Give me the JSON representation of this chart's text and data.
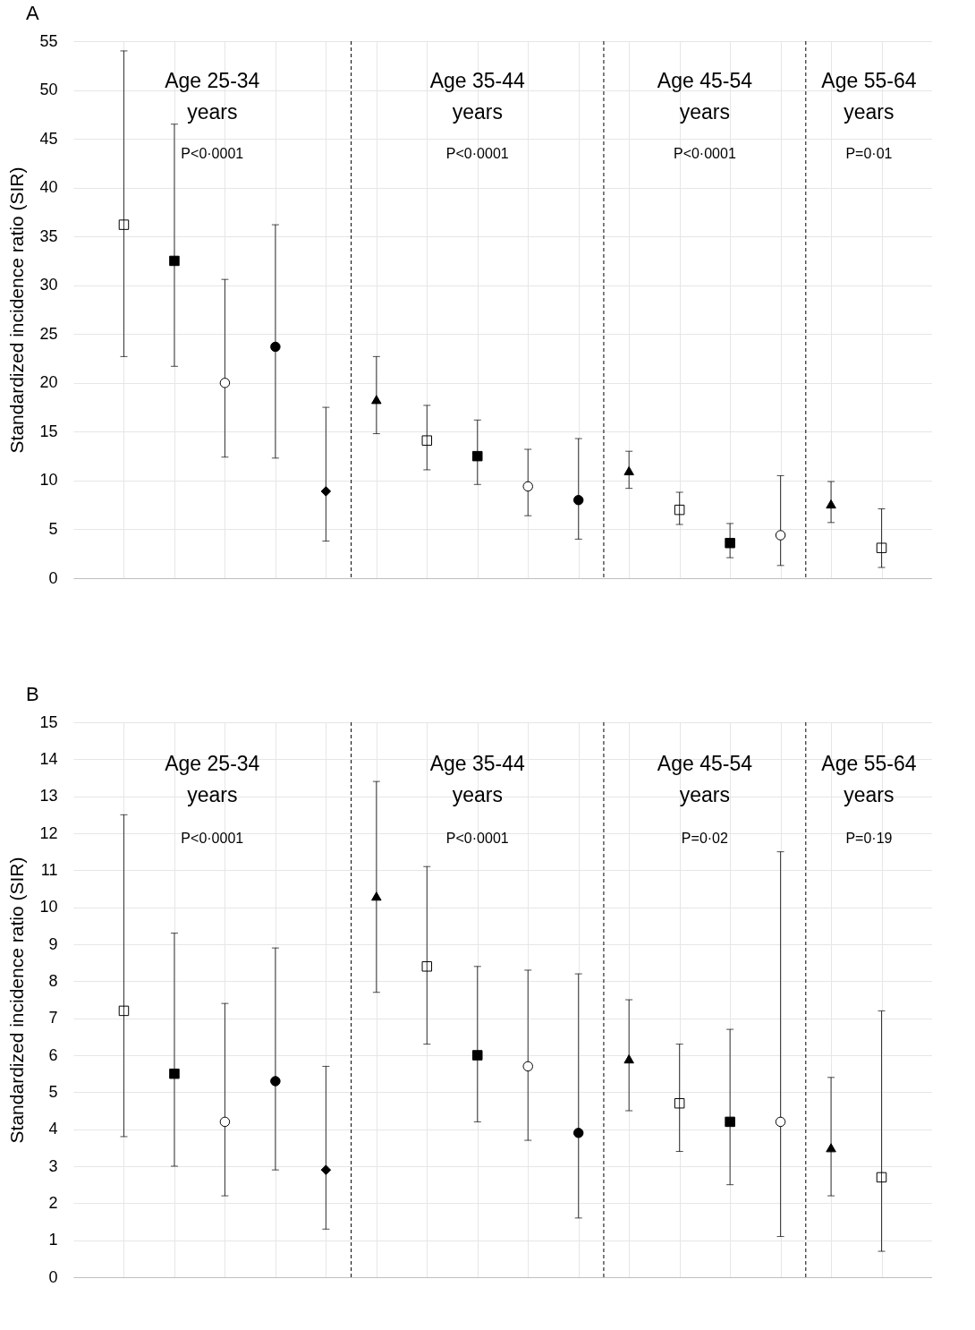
{
  "chart_data": [
    {
      "type": "scatter",
      "title": "A",
      "ylabel": "Standardized incidence ratio (SIR)",
      "categories": [
        null,
        null,
        null,
        null,
        null,
        null,
        null,
        null,
        null,
        null,
        null,
        null,
        null,
        null,
        null,
        null
      ],
      "ylim": [
        0,
        55
      ],
      "yticks": [
        0,
        5,
        10,
        15,
        20,
        25,
        30,
        35,
        40,
        45,
        50,
        55
      ],
      "tick_labels": "y",
      "grid": true,
      "series": [
        {
          "marker": "square",
          "color": "#ffffff",
          "values": [
            36.2,
            null,
            null,
            null,
            null,
            null,
            14.1,
            null,
            null,
            null,
            null,
            7.0,
            null,
            null,
            null,
            3.1
          ],
          "errors": [
            [
              22.7,
              54.0
            ],
            null,
            null,
            null,
            null,
            null,
            [
              11.1,
              17.7
            ],
            null,
            null,
            null,
            null,
            [
              5.5,
              8.8
            ],
            null,
            null,
            null,
            [
              1.1,
              7.1
            ]
          ]
        },
        {
          "marker": "square",
          "color": "#000000",
          "values": [
            null,
            32.5,
            null,
            null,
            null,
            null,
            null,
            12.5,
            null,
            null,
            null,
            null,
            3.6,
            null,
            null,
            null
          ],
          "errors": [
            null,
            [
              21.7,
              46.5
            ],
            null,
            null,
            null,
            null,
            null,
            [
              9.6,
              16.2
            ],
            null,
            null,
            null,
            null,
            [
              2.1,
              5.6
            ],
            null,
            null,
            null
          ]
        },
        {
          "marker": "circle",
          "color": "#ffffff",
          "values": [
            null,
            null,
            20.0,
            null,
            null,
            null,
            null,
            null,
            9.4,
            null,
            null,
            null,
            null,
            4.4,
            null,
            null
          ],
          "errors": [
            null,
            null,
            [
              12.4,
              30.6
            ],
            null,
            null,
            null,
            null,
            null,
            [
              6.4,
              13.2
            ],
            null,
            null,
            null,
            null,
            [
              1.3,
              10.5
            ],
            null,
            null
          ]
        },
        {
          "marker": "circle",
          "color": "#000000",
          "values": [
            null,
            null,
            null,
            23.7,
            null,
            null,
            null,
            null,
            null,
            8.0,
            null,
            null,
            null,
            null,
            null,
            null
          ],
          "errors": [
            null,
            null,
            null,
            [
              12.3,
              36.2
            ],
            null,
            null,
            null,
            null,
            null,
            [
              4.0,
              14.3
            ],
            null,
            null,
            null,
            null,
            null,
            null
          ]
        },
        {
          "marker": "diamond",
          "color": "#000000",
          "values": [
            null,
            null,
            null,
            null,
            8.9,
            null,
            null,
            null,
            null,
            null,
            null,
            null,
            null,
            null,
            null,
            null
          ],
          "errors": [
            null,
            null,
            null,
            null,
            [
              3.8,
              17.5
            ],
            null,
            null,
            null,
            null,
            null,
            null,
            null,
            null,
            null,
            null,
            null
          ]
        },
        {
          "marker": "triangle",
          "color": "#000000",
          "values": [
            null,
            null,
            null,
            null,
            null,
            18.3,
            null,
            null,
            null,
            null,
            11.0,
            null,
            null,
            null,
            7.6,
            null
          ],
          "errors": [
            null,
            null,
            null,
            null,
            null,
            [
              14.8,
              22.7
            ],
            null,
            null,
            null,
            null,
            [
              9.2,
              13.0
            ],
            null,
            null,
            null,
            [
              5.7,
              9.9
            ],
            null
          ]
        }
      ],
      "annotations": [
        "Age 25-34 years",
        "Age 35-44 years",
        "Age 45-54 years",
        "Age 55-64 years",
        "P<0·0001",
        "P<0·0001",
        "P<0·0001",
        "P=0·01"
      ]
    },
    {
      "type": "scatter",
      "title": "B",
      "ylabel": "Standardized incidence ratio (SIR)",
      "categories": [
        null,
        null,
        null,
        null,
        null,
        null,
        null,
        null,
        null,
        null,
        null,
        null,
        null,
        null,
        null,
        null
      ],
      "ylim": [
        0,
        15
      ],
      "yticks": [
        0,
        1,
        2,
        3,
        4,
        5,
        6,
        7,
        8,
        9,
        10,
        11,
        12,
        13,
        14,
        15
      ],
      "tick_labels": "y",
      "grid": true,
      "series": [
        {
          "marker": "square",
          "color": "#ffffff",
          "values": [
            7.2,
            null,
            null,
            null,
            null,
            null,
            8.4,
            null,
            null,
            null,
            null,
            4.7,
            null,
            null,
            null,
            2.7
          ],
          "errors": [
            [
              3.8,
              12.5
            ],
            null,
            null,
            null,
            null,
            null,
            [
              6.3,
              11.1
            ],
            null,
            null,
            null,
            null,
            [
              3.4,
              6.3
            ],
            null,
            null,
            null,
            [
              0.7,
              7.2
            ]
          ]
        },
        {
          "marker": "square",
          "color": "#000000",
          "values": [
            null,
            5.5,
            null,
            null,
            null,
            null,
            null,
            6.0,
            null,
            null,
            null,
            null,
            4.2,
            null,
            null,
            null
          ],
          "errors": [
            null,
            [
              3.0,
              9.3
            ],
            null,
            null,
            null,
            null,
            null,
            [
              4.2,
              8.4
            ],
            null,
            null,
            null,
            null,
            [
              2.5,
              6.7
            ],
            null,
            null,
            null
          ]
        },
        {
          "marker": "circle",
          "color": "#ffffff",
          "values": [
            null,
            null,
            4.2,
            null,
            null,
            null,
            null,
            null,
            5.7,
            null,
            null,
            null,
            null,
            4.2,
            null,
            null
          ],
          "errors": [
            null,
            null,
            [
              2.2,
              7.4
            ],
            null,
            null,
            null,
            null,
            null,
            [
              3.7,
              8.3
            ],
            null,
            null,
            null,
            null,
            [
              1.1,
              11.5
            ],
            null,
            null
          ]
        },
        {
          "marker": "circle",
          "color": "#000000",
          "values": [
            null,
            null,
            null,
            5.3,
            null,
            null,
            null,
            null,
            null,
            3.9,
            null,
            null,
            null,
            null,
            null,
            null
          ],
          "errors": [
            null,
            null,
            null,
            [
              2.9,
              8.9
            ],
            null,
            null,
            null,
            null,
            null,
            [
              1.6,
              8.2
            ],
            null,
            null,
            null,
            null,
            null,
            null
          ]
        },
        {
          "marker": "diamond",
          "color": "#000000",
          "values": [
            null,
            null,
            null,
            null,
            2.9,
            null,
            null,
            null,
            null,
            null,
            null,
            null,
            null,
            null,
            null,
            null
          ],
          "errors": [
            null,
            null,
            null,
            null,
            [
              1.3,
              5.7
            ],
            null,
            null,
            null,
            null,
            null,
            null,
            null,
            null,
            null,
            null,
            null
          ]
        },
        {
          "marker": "triangle",
          "color": "#000000",
          "values": [
            null,
            null,
            null,
            null,
            null,
            10.3,
            null,
            null,
            null,
            null,
            5.9,
            null,
            null,
            null,
            3.5,
            null
          ],
          "errors": [
            null,
            null,
            null,
            null,
            null,
            [
              7.7,
              13.4
            ],
            null,
            null,
            null,
            null,
            [
              4.5,
              7.5
            ],
            null,
            null,
            null,
            [
              2.2,
              5.4
            ],
            null
          ]
        }
      ],
      "annotations": [
        "Age 25-34 years",
        "Age 35-44 years",
        "Age 45-54 years",
        "Age 55-64 years",
        "P<0·0001",
        "P<0·0001",
        "P=0·02",
        "P=0·19"
      ]
    }
  ]
}
